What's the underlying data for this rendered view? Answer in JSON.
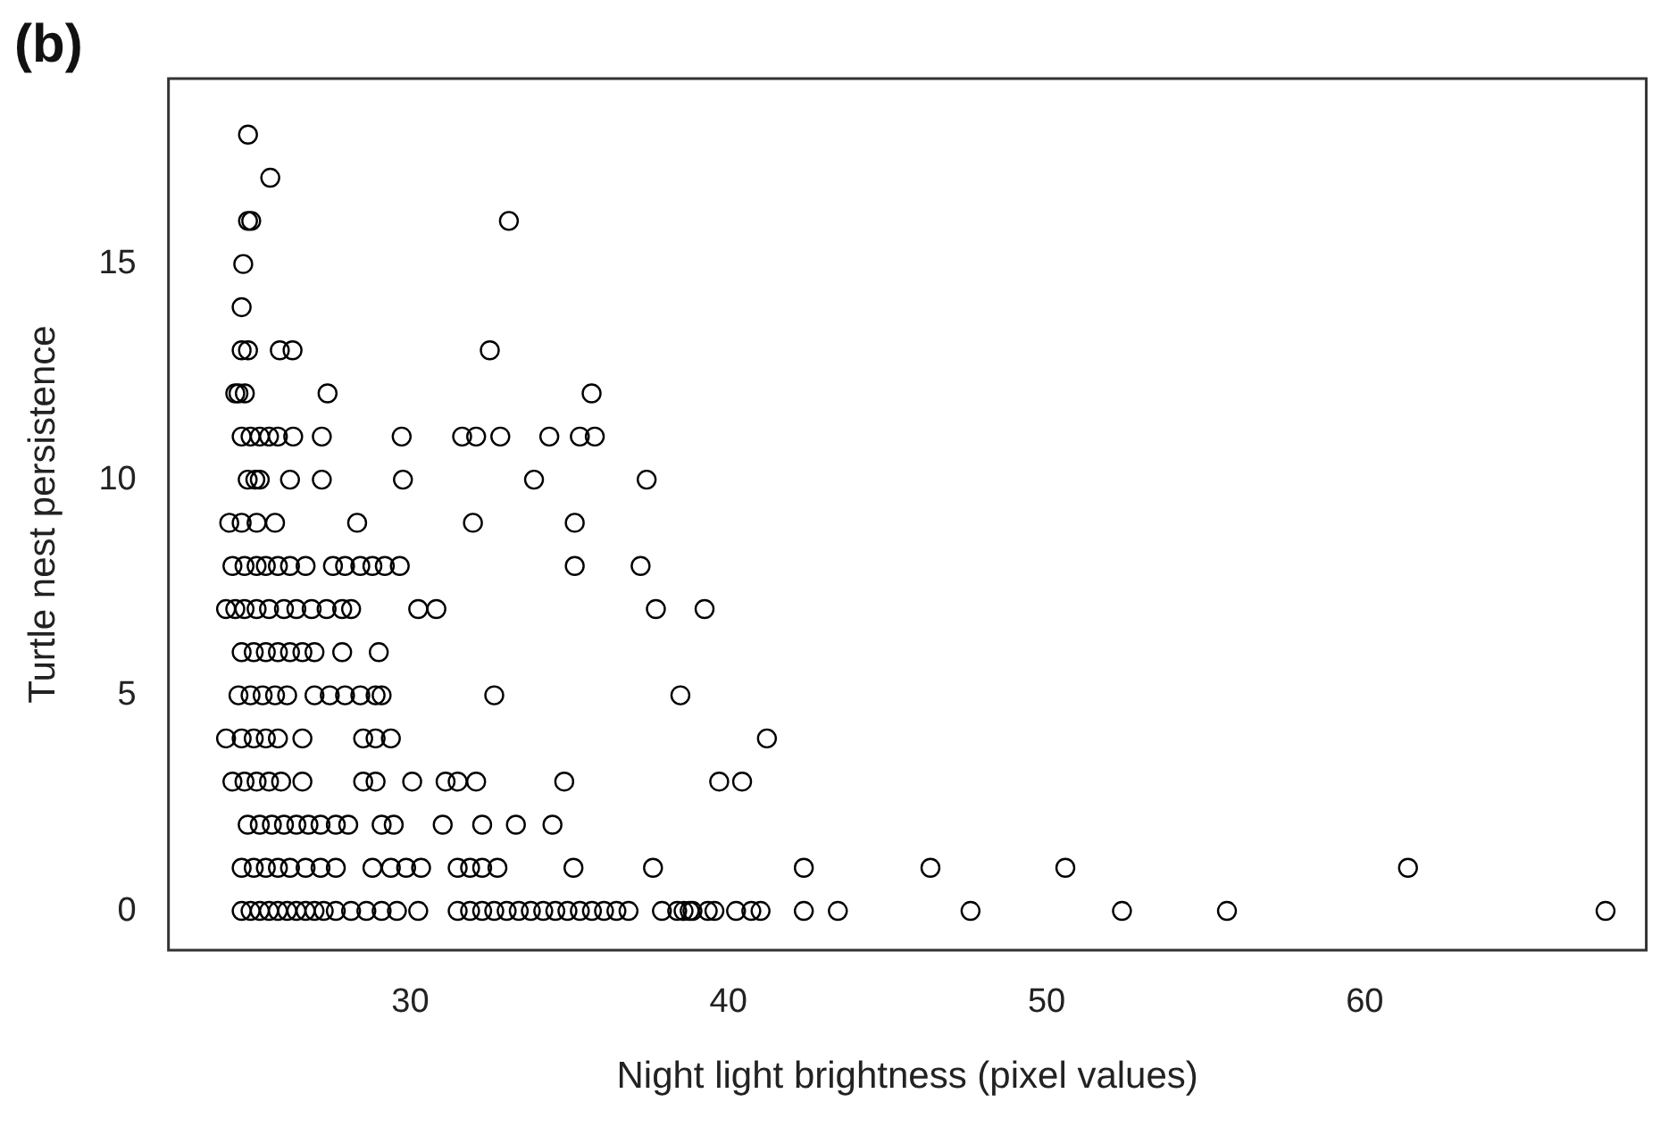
{
  "chart_data": {
    "type": "scatter",
    "title": "(b)",
    "xlabel": "Night light brightness (pixel values)",
    "ylabel": "Turtle nest persistence",
    "xlim": [
      22.4,
      68.85
    ],
    "ylim": [
      -0.91,
      19.3
    ],
    "xticks": [
      30,
      40,
      50,
      60
    ],
    "yticks": [
      0,
      5,
      10,
      15
    ],
    "grid": false,
    "legend": false,
    "marker": "circle",
    "series": [
      {
        "color": "#000000",
        "x": [
          24.9,
          25.6,
          24.9,
          25.0,
          33.1,
          24.75,
          24.7,
          24.7,
          24.9,
          25.9,
          26.3,
          32.5,
          24.5,
          24.6,
          24.8,
          27.4,
          35.7,
          24.7,
          24.98,
          25.27,
          25.56,
          25.84,
          26.32,
          27.22,
          29.73,
          31.63,
          32.07,
          32.83,
          34.37,
          35.33,
          35.8,
          24.89,
          25.13,
          25.27,
          26.22,
          27.22,
          29.77,
          33.89,
          37.43,
          24.31,
          24.7,
          25.17,
          25.75,
          28.33,
          31.97,
          35.17,
          24.41,
          24.79,
          25.17,
          25.46,
          25.84,
          26.22,
          26.71,
          27.57,
          27.95,
          28.43,
          28.81,
          29.2,
          29.67,
          35.17,
          37.24,
          24.21,
          24.5,
          24.79,
          25.17,
          25.56,
          26.03,
          26.42,
          26.9,
          27.37,
          27.86,
          28.14,
          30.25,
          30.82,
          37.72,
          39.25,
          24.7,
          25.08,
          25.46,
          25.84,
          26.22,
          26.61,
          26.99,
          27.86,
          29.01,
          24.6,
          24.98,
          25.36,
          25.75,
          26.13,
          26.99,
          27.47,
          27.95,
          28.43,
          28.91,
          29.1,
          32.64,
          38.49,
          24.21,
          24.7,
          25.08,
          25.46,
          25.84,
          26.61,
          28.52,
          28.91,
          29.39,
          41.21,
          24.41,
          24.79,
          25.17,
          25.56,
          25.94,
          26.61,
          28.52,
          28.91,
          30.06,
          31.11,
          31.49,
          32.07,
          34.84,
          39.71,
          40.43,
          24.89,
          25.27,
          25.65,
          26.03,
          26.42,
          26.8,
          27.18,
          27.66,
          28.05,
          29.1,
          29.48,
          31.02,
          32.26,
          33.32,
          34.47,
          24.7,
          25.08,
          25.46,
          25.84,
          26.22,
          26.71,
          27.18,
          27.66,
          28.81,
          29.39,
          29.87,
          30.34,
          31.49,
          31.88,
          32.26,
          32.74,
          35.13,
          37.63,
          42.37,
          46.35,
          50.59,
          61.36,
          24.7,
          24.98,
          25.27,
          25.56,
          25.84,
          26.13,
          26.42,
          26.71,
          26.99,
          27.28,
          27.66,
          28.14,
          28.62,
          29.1,
          29.58,
          30.25,
          31.49,
          31.88,
          32.26,
          32.64,
          33.03,
          33.41,
          33.79,
          34.18,
          34.56,
          34.94,
          35.33,
          35.71,
          36.09,
          36.48,
          36.86,
          37.91,
          38.39,
          38.87,
          39.35,
          38.59,
          38.78,
          39.56,
          40.24,
          40.72,
          41.01,
          42.37,
          43.44,
          47.61,
          52.37,
          55.67,
          67.57
        ],
        "values": [
          18,
          17,
          16,
          16,
          16,
          15,
          14,
          13,
          13,
          13,
          13,
          13,
          12,
          12,
          12,
          12,
          12,
          11,
          11,
          11,
          11,
          11,
          11,
          11,
          11,
          11,
          11,
          11,
          11,
          11,
          11,
          10,
          10,
          10,
          10,
          10,
          10,
          10,
          10,
          9,
          9,
          9,
          9,
          9,
          9,
          9,
          8,
          8,
          8,
          8,
          8,
          8,
          8,
          8,
          8,
          8,
          8,
          8,
          8,
          8,
          8,
          7,
          7,
          7,
          7,
          7,
          7,
          7,
          7,
          7,
          7,
          7,
          7,
          7,
          7,
          7,
          6,
          6,
          6,
          6,
          6,
          6,
          6,
          6,
          6,
          5,
          5,
          5,
          5,
          5,
          5,
          5,
          5,
          5,
          5,
          5,
          5,
          5,
          4,
          4,
          4,
          4,
          4,
          4,
          4,
          4,
          4,
          4,
          3,
          3,
          3,
          3,
          3,
          3,
          3,
          3,
          3,
          3,
          3,
          3,
          3,
          3,
          3,
          2,
          2,
          2,
          2,
          2,
          2,
          2,
          2,
          2,
          2,
          2,
          2,
          2,
          2,
          2,
          1,
          1,
          1,
          1,
          1,
          1,
          1,
          1,
          1,
          1,
          1,
          1,
          1,
          1,
          1,
          1,
          1,
          1,
          1,
          1,
          1,
          1,
          0,
          0,
          0,
          0,
          0,
          0,
          0,
          0,
          0,
          0,
          0,
          0,
          0,
          0,
          0,
          0,
          0,
          0,
          0,
          0,
          0,
          0,
          0,
          0,
          0,
          0,
          0,
          0,
          0,
          0,
          0,
          0,
          0,
          0,
          0,
          0,
          0,
          0,
          0,
          0,
          0,
          0,
          0,
          0,
          0,
          0,
          0
        ]
      }
    ]
  }
}
